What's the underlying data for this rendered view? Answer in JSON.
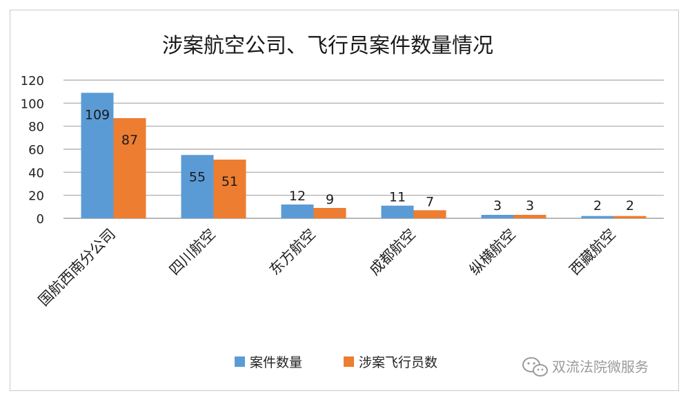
{
  "chart_data": {
    "type": "bar",
    "title": "涉案航空公司、飞行员案件数量情况",
    "categories": [
      "国航西南分公司",
      "四川航空",
      "东方航空",
      "成都航空",
      "纵横航空",
      "西藏航空"
    ],
    "series": [
      {
        "name": "案件数量",
        "values": [
          109,
          55,
          12,
          11,
          3,
          2
        ],
        "color": "#5b9bd5"
      },
      {
        "name": "涉案飞行员数",
        "values": [
          87,
          51,
          9,
          7,
          3,
          2
        ],
        "color": "#ed7d31"
      }
    ],
    "ylim": [
      0,
      120
    ],
    "yticks": [
      0,
      20,
      40,
      60,
      80,
      100,
      120
    ],
    "grid": true,
    "legend_position": "bottom"
  },
  "watermark": {
    "text": "双流法院微服务",
    "icon": "wechat-icon"
  }
}
